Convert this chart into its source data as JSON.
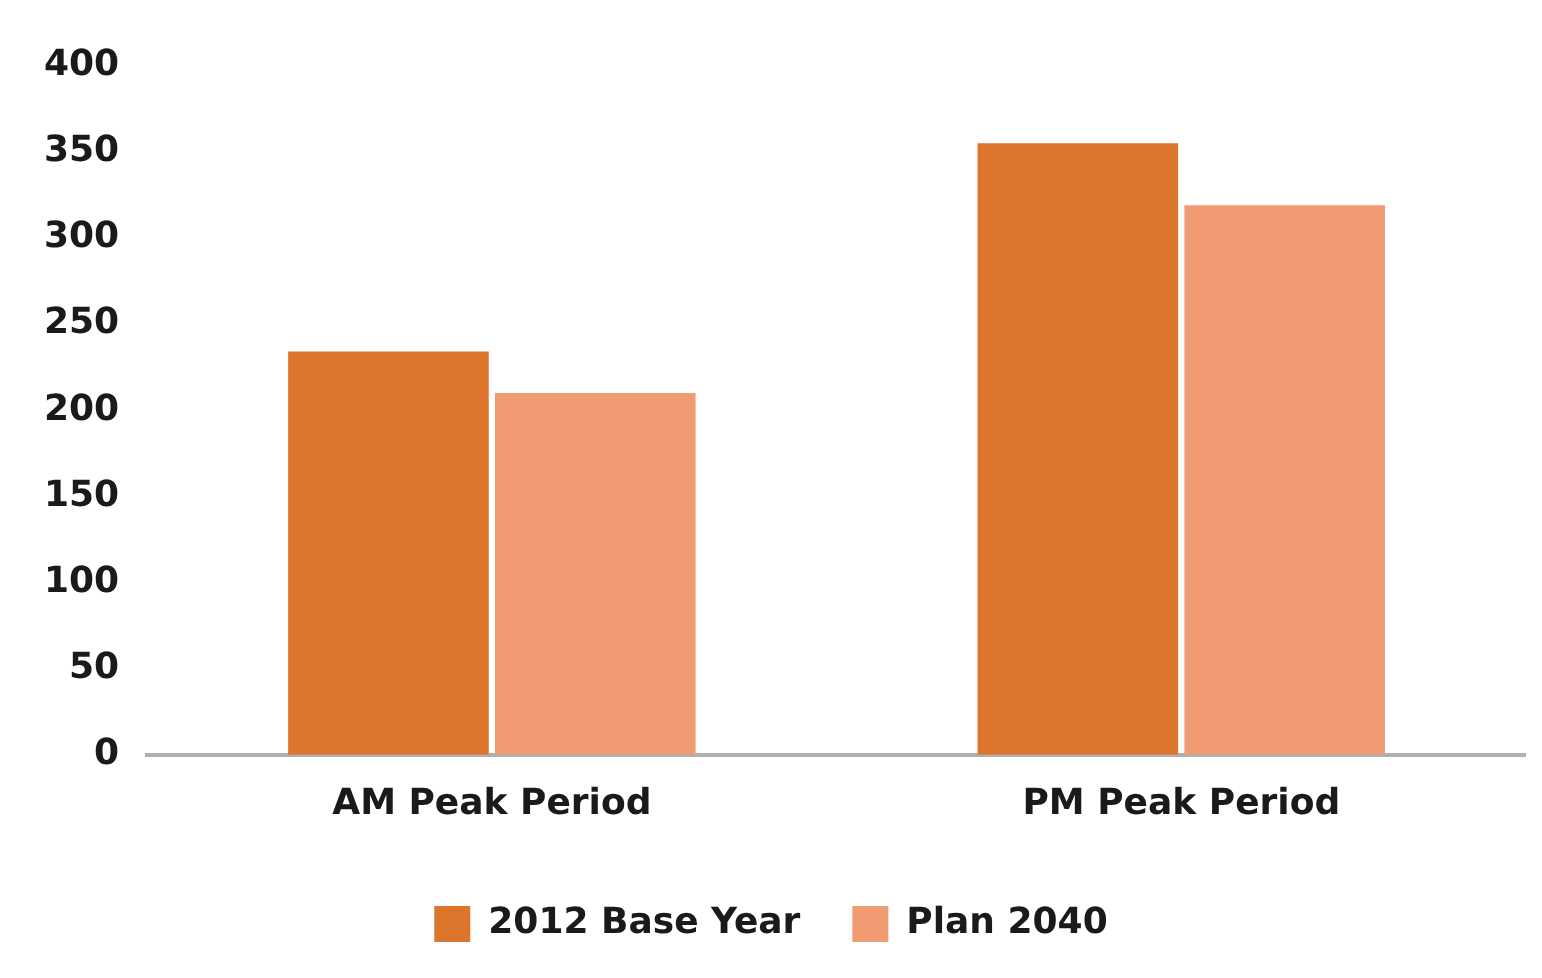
{
  "chart_data": {
    "type": "bar",
    "categories": [
      "AM Peak Period",
      "PM Peak Period"
    ],
    "series": [
      {
        "name": "2012 Base Year",
        "color": "#de752d",
        "values": [
          234,
          355
        ]
      },
      {
        "name": "Plan 2040",
        "color": "#f19b73",
        "values": [
          210,
          319
        ]
      }
    ],
    "ylim": [
      0,
      400
    ],
    "yticks": [
      0,
      50,
      100,
      150,
      200,
      250,
      300,
      350,
      400
    ],
    "grid": false,
    "legend": "bottom"
  }
}
